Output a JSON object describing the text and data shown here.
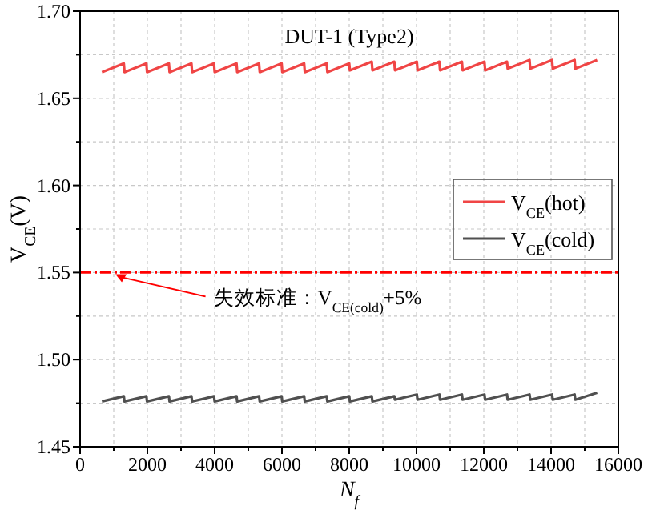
{
  "chart_data": {
    "type": "line",
    "title": "DUT-1 (Type2)",
    "xlabel": "N$_{f}$",
    "ylabel": "V$_{CE}$(V)",
    "x": [
      650,
      1300,
      1320,
      1970,
      1990,
      2640,
      2660,
      3310,
      3330,
      3980,
      4000,
      4650,
      4670,
      5320,
      5340,
      5990,
      6010,
      6660,
      6680,
      7330,
      7350,
      8000,
      8020,
      8670,
      8690,
      9340,
      9360,
      10010,
      10030,
      10680,
      10700,
      11350,
      11370,
      12020,
      12040,
      12690,
      12710,
      13360,
      13380,
      14030,
      14050,
      14700,
      14720,
      15370
    ],
    "series": [
      {
        "name": "V$_{CE}$(hot)",
        "color": "#f04545",
        "values": [
          1.665,
          1.67,
          1.665,
          1.67,
          1.665,
          1.67,
          1.665,
          1.67,
          1.665,
          1.67,
          1.665,
          1.67,
          1.665,
          1.67,
          1.665,
          1.67,
          1.665,
          1.67,
          1.665,
          1.67,
          1.665,
          1.67,
          1.666,
          1.671,
          1.666,
          1.671,
          1.666,
          1.671,
          1.666,
          1.671,
          1.666,
          1.671,
          1.666,
          1.671,
          1.666,
          1.671,
          1.667,
          1.672,
          1.667,
          1.672,
          1.667,
          1.672,
          1.667,
          1.672
        ]
      },
      {
        "name": "V$_{CE}$(cold)",
        "color": "#505050",
        "values": [
          1.476,
          1.479,
          1.476,
          1.479,
          1.476,
          1.479,
          1.476,
          1.479,
          1.476,
          1.479,
          1.476,
          1.479,
          1.476,
          1.479,
          1.476,
          1.479,
          1.476,
          1.479,
          1.476,
          1.479,
          1.476,
          1.479,
          1.476,
          1.479,
          1.476,
          1.479,
          1.477,
          1.48,
          1.477,
          1.48,
          1.477,
          1.48,
          1.477,
          1.48,
          1.477,
          1.48,
          1.477,
          1.48,
          1.477,
          1.48,
          1.477,
          1.48,
          1.477,
          1.481
        ]
      }
    ],
    "xlim": [
      0,
      16000
    ],
    "xticks": [
      0,
      {
        "value": 1000,
        "label": null
      },
      2000,
      {
        "value": 3000,
        "label": null
      },
      4000,
      {
        "value": 5000,
        "label": null
      },
      6000,
      {
        "value": 7000,
        "label": null
      },
      8000,
      {
        "value": 9000,
        "label": null
      },
      10000,
      {
        "value": 11000,
        "label": null
      },
      12000,
      {
        "value": 13000,
        "label": null
      },
      14000,
      {
        "value": 15000,
        "label": null
      },
      16000
    ],
    "ylim": [
      1.45,
      1.7
    ],
    "yticks": [
      {
        "value": 1.45,
        "label": "1.45"
      },
      {
        "value": 1.475,
        "label": null
      },
      {
        "value": 1.5,
        "label": "1.50"
      },
      {
        "value": 1.525,
        "label": null
      },
      {
        "value": 1.55,
        "label": "1.55"
      },
      {
        "value": 1.575,
        "label": null
      },
      {
        "value": 1.6,
        "label": "1.60"
      },
      {
        "value": 1.625,
        "label": null
      },
      {
        "value": 1.65,
        "label": "1.65"
      },
      {
        "value": 1.675,
        "label": null
      },
      {
        "value": 1.7,
        "label": "1.70"
      }
    ],
    "ref_lines": [
      {
        "axis": "y",
        "value": 1.55,
        "label": "失效标准：V$_{CE(cold)}$+5%",
        "color": "#ff0000",
        "line_style": "dashdot"
      }
    ],
    "grid": true,
    "legend": "right",
    "line_style": "solid"
  }
}
